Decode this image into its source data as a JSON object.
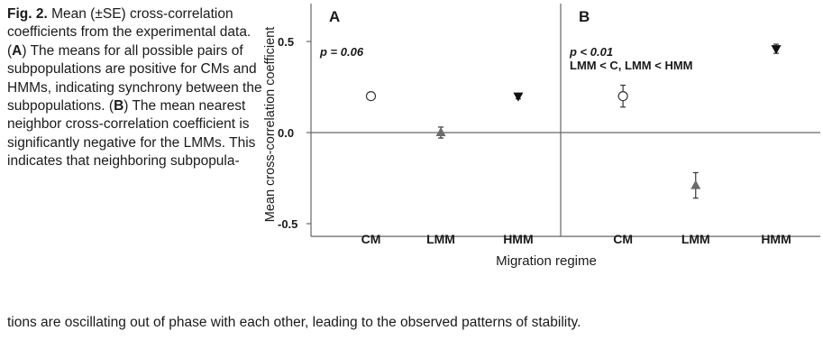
{
  "caption": {
    "figure_label": "Fig. 2.",
    "intro": " Mean (±SE) cross-correlation coefficients from the experimental data. (",
    "label_a": "A",
    "text_a": ") The means for all possible pairs of subpopulations are positive for CMs and HMMs, indicating synchrony between the subpopulations. (",
    "label_b": "B",
    "text_b": ") The mean nearest neighbor cross-correlation coefficient is significantly negative for the LMMs. This indicates that neighboring subpopula-",
    "tail": "tions are oscillating out of phase with each other, leading to the observed patterns of stability."
  },
  "chart_data": {
    "type": "scatter",
    "ylabel": "Mean cross-correlation coefficient",
    "xlabel": "Migration regime",
    "ylim": [
      -0.55,
      0.58
    ],
    "y_ticks": [
      "0.5",
      "0.0",
      "-0.5"
    ],
    "y_tick_values": [
      0.5,
      0.0,
      -0.5
    ],
    "categories": [
      "CM",
      "LMM",
      "HMM"
    ],
    "panels": [
      {
        "label": "A",
        "annotation_lines": [
          "p = 0.06"
        ],
        "points": [
          {
            "category": "CM",
            "y": 0.2,
            "se": 0.02,
            "marker": "circle-open"
          },
          {
            "category": "LMM",
            "y": 0.0,
            "se": 0.03,
            "marker": "triangle-up"
          },
          {
            "category": "HMM",
            "y": 0.2,
            "se": 0.015,
            "marker": "triangle-down"
          }
        ]
      },
      {
        "label": "B",
        "annotation_lines": [
          "p < 0.01",
          "LMM < C, LMM < HMM"
        ],
        "points": [
          {
            "category": "CM",
            "y": 0.2,
            "se": 0.06,
            "marker": "circle-open"
          },
          {
            "category": "LMM",
            "y": -0.29,
            "se": 0.07,
            "marker": "triangle-up"
          },
          {
            "category": "HMM",
            "y": 0.46,
            "se": 0.025,
            "marker": "triangle-down"
          }
        ]
      }
    ],
    "grid": false,
    "zero_line": true
  }
}
